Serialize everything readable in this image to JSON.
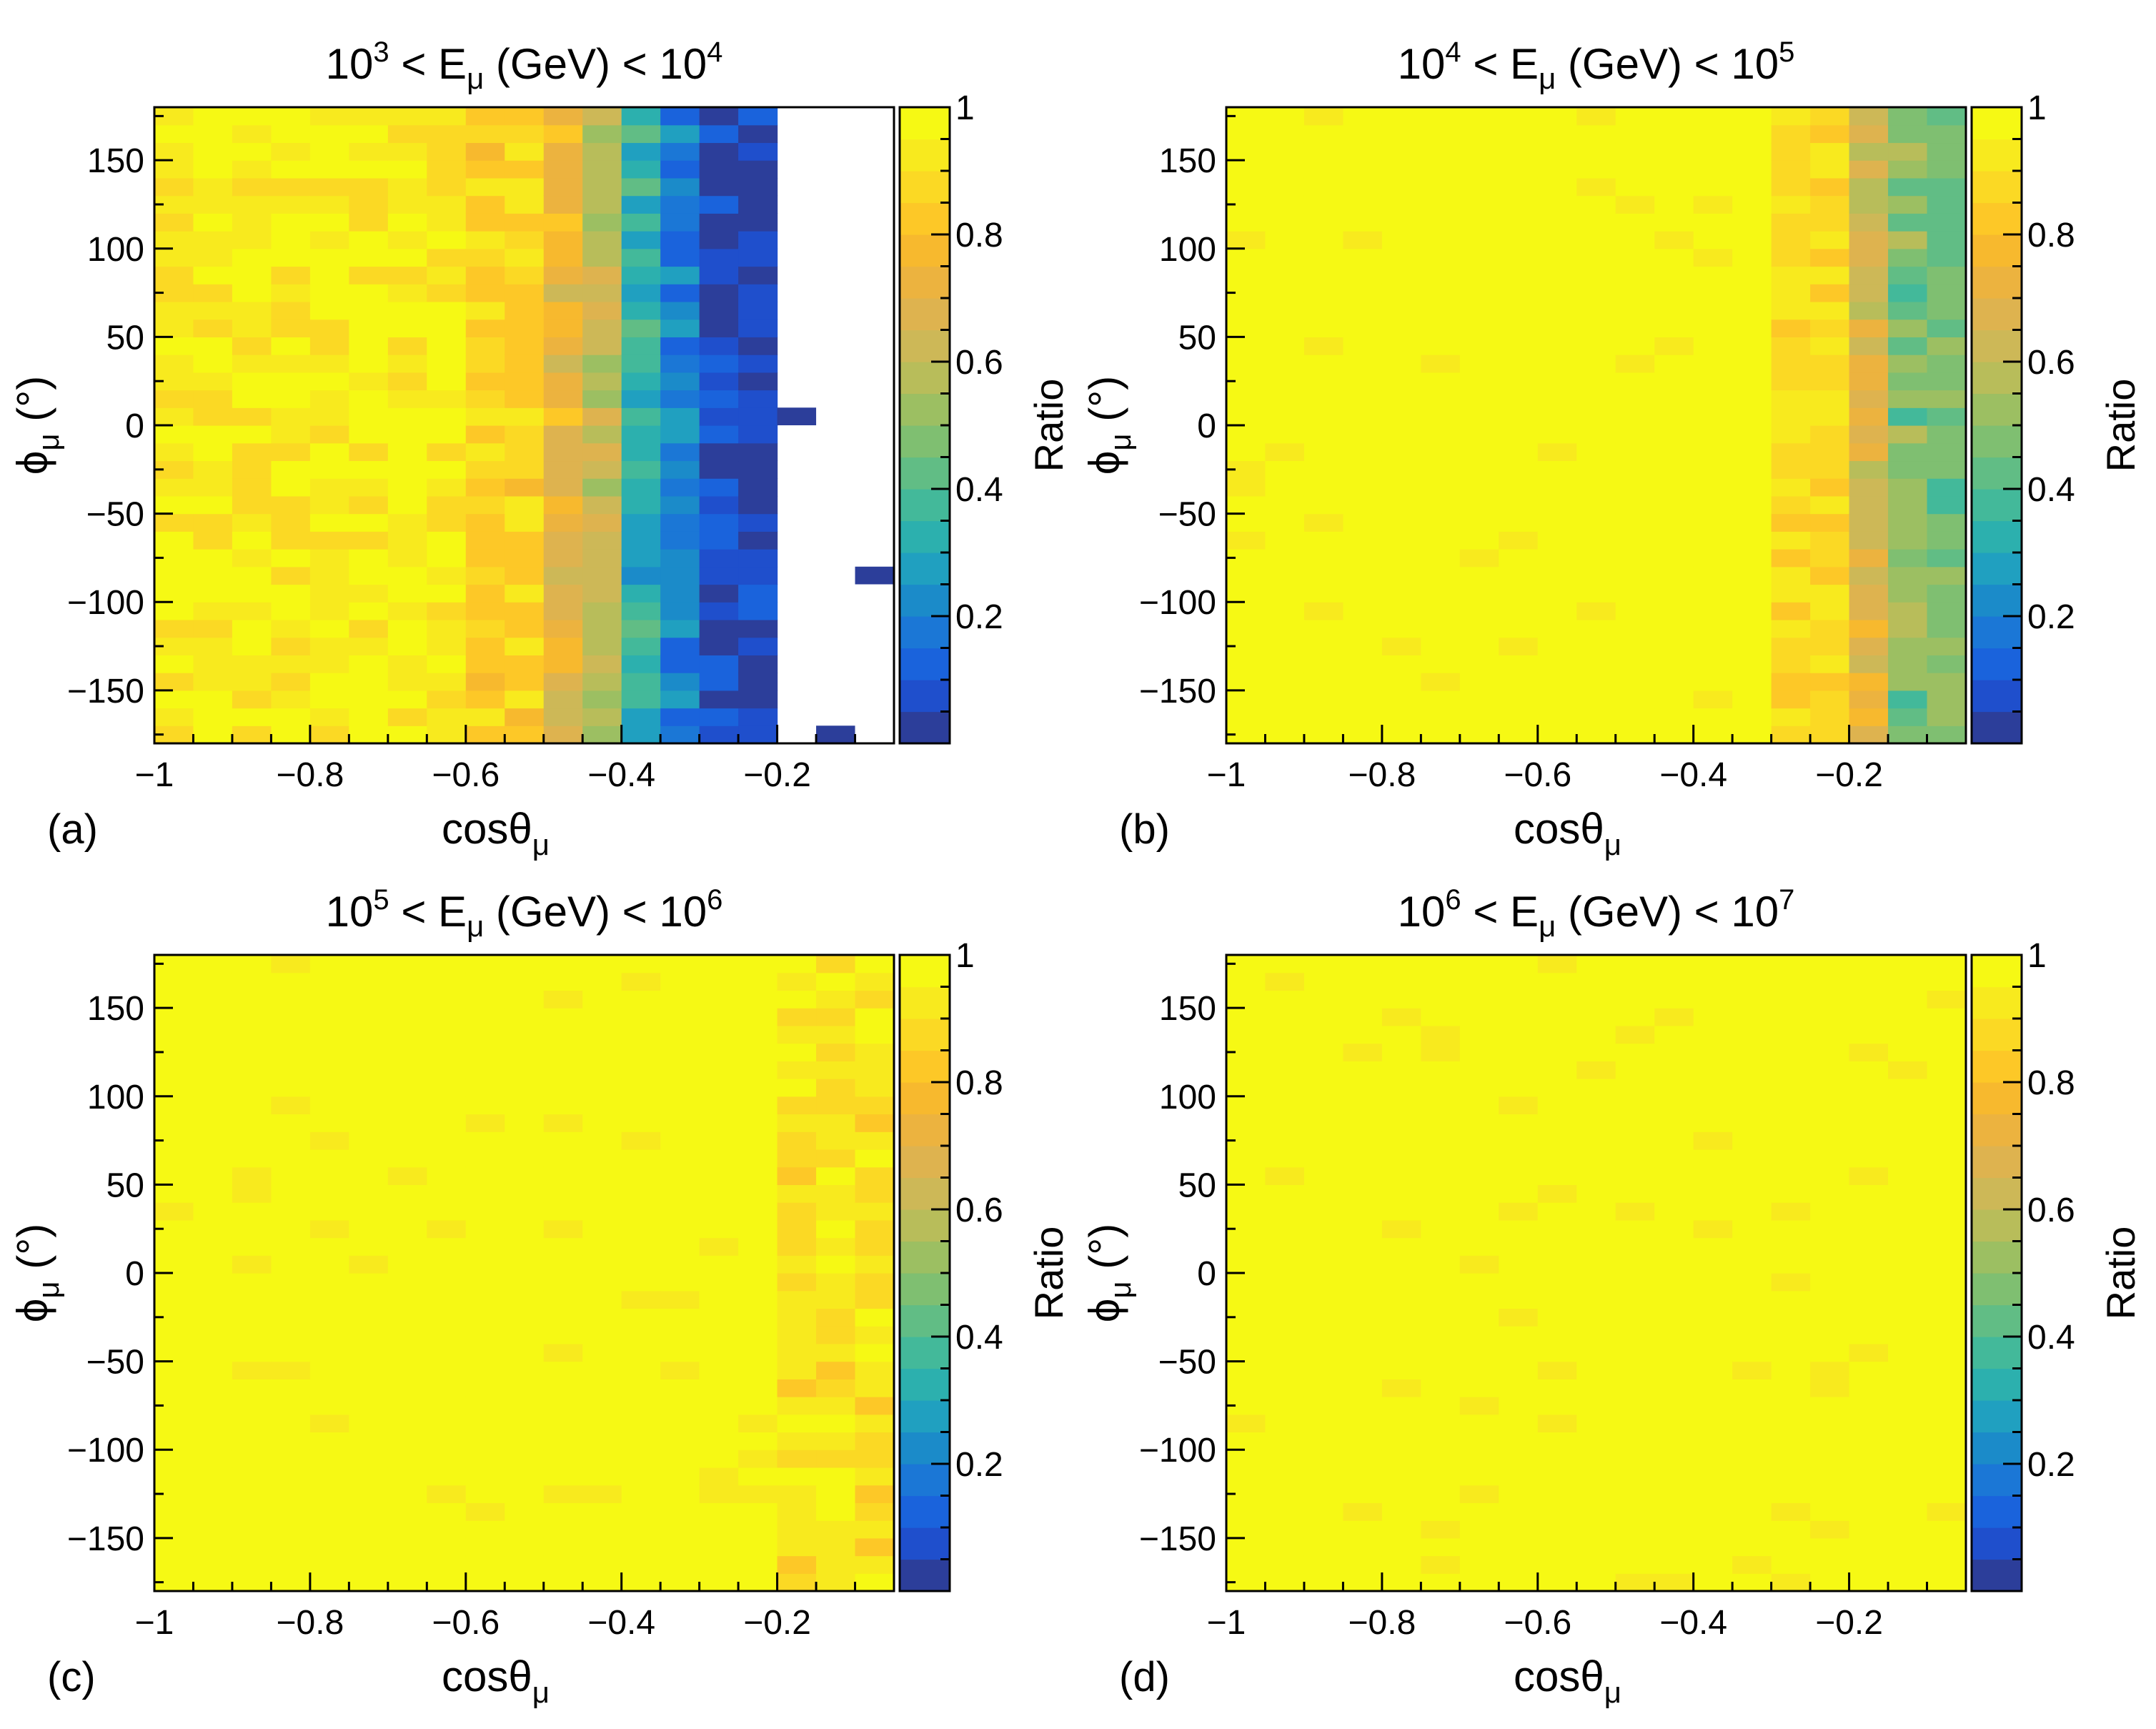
{
  "figure": {
    "colorbar_label": "Ratio"
  },
  "colorscale": [
    "#2c3e9a",
    "#1f4fcc",
    "#1a63dc",
    "#1b77d6",
    "#1b8bc9",
    "#20a0c0",
    "#2cb0ae",
    "#43b99a",
    "#61bd85",
    "#7fbf71",
    "#9cbf62",
    "#b8bd5a",
    "#cdb857",
    "#deb34f",
    "#ecb33f",
    "#f7b92e",
    "#fdc827",
    "#fbd924",
    "#f8ea1e",
    "#f6f914"
  ],
  "chart_data": [
    {
      "type": "heatmap",
      "panel_label": "(a)",
      "title": {
        "base1": "10",
        "exp1": "3",
        "mid": " < E",
        "sub": "μ",
        "after": " (GeV) < ",
        "base2": "10",
        "exp2": "4"
      },
      "xlabel": {
        "main": "cosθ",
        "sub": "μ"
      },
      "ylabel": {
        "main": "ϕ",
        "sub": "μ",
        "after": " (°)"
      },
      "colorbar": {
        "label": "Ratio",
        "ticks": [
          "1",
          "0.8",
          "0.6",
          "0.4",
          "0.2"
        ],
        "tick_values": [
          1,
          0.8,
          0.6,
          0.4,
          0.2
        ],
        "range": [
          0,
          1
        ]
      },
      "x_ticks": [
        "−1",
        "−0.8",
        "−0.6",
        "−0.4",
        "−0.2"
      ],
      "x_tick_values": [
        -1,
        -0.8,
        -0.6,
        -0.4,
        -0.2
      ],
      "y_ticks": [
        "150",
        "100",
        "50",
        "0",
        "−50",
        "−100",
        "−150"
      ],
      "y_tick_values": [
        150,
        100,
        50,
        0,
        -50,
        -100,
        -150
      ],
      "xlim": [
        -1,
        -0.05
      ],
      "ylim": [
        -180,
        180
      ],
      "n_xbins": 19,
      "n_ybins": 36,
      "columns": [
        {
          "from": -1.0,
          "to": -0.6,
          "mean": 0.94
        },
        {
          "from": -0.6,
          "to": -0.5,
          "mean": 0.86
        },
        {
          "from": -0.5,
          "to": -0.45,
          "mean": 0.72
        },
        {
          "from": -0.45,
          "to": -0.4,
          "mean": 0.6
        },
        {
          "from": -0.4,
          "to": -0.35,
          "mean": 0.33
        },
        {
          "from": -0.35,
          "to": -0.3,
          "mean": 0.2
        },
        {
          "from": -0.3,
          "to": -0.25,
          "mean": 0.06
        },
        {
          "from": -0.25,
          "to": -0.2,
          "mean": 0.03
        }
      ],
      "isolated_cells": [
        {
          "x": -0.2,
          "phi": 0,
          "value": 0.02
        },
        {
          "x": -0.1,
          "phi": -85,
          "value": 0.02
        },
        {
          "x": -0.15,
          "phi": -175,
          "value": 0.02
        }
      ]
    },
    {
      "type": "heatmap",
      "panel_label": "(b)",
      "title": {
        "base1": "10",
        "exp1": "4",
        "mid": " < E",
        "sub": "μ",
        "after": " (GeV) < ",
        "base2": "10",
        "exp2": "5"
      },
      "xlabel": {
        "main": "cosθ",
        "sub": "μ"
      },
      "ylabel": {
        "main": "ϕ",
        "sub": "μ",
        "after": " (°)"
      },
      "colorbar": {
        "label": "Ratio",
        "ticks": [
          "1",
          "0.8",
          "0.6",
          "0.4",
          "0.2"
        ],
        "tick_values": [
          1,
          0.8,
          0.6,
          0.4,
          0.2
        ],
        "range": [
          0,
          1
        ]
      },
      "x_ticks": [
        "−1",
        "−0.8",
        "−0.6",
        "−0.4",
        "−0.2"
      ],
      "x_tick_values": [
        -1,
        -0.8,
        -0.6,
        -0.4,
        -0.2
      ],
      "y_ticks": [
        "150",
        "100",
        "50",
        "0",
        "−50",
        "−100",
        "−150"
      ],
      "y_tick_values": [
        150,
        100,
        50,
        0,
        -50,
        -100,
        -150
      ],
      "xlim": [
        -1,
        -0.05
      ],
      "ylim": [
        -180,
        180
      ],
      "n_xbins": 19,
      "n_ybins": 36,
      "columns": [
        {
          "from": -1.0,
          "to": -0.3,
          "mean": 0.99
        },
        {
          "from": -0.3,
          "to": -0.2,
          "mean": 0.88
        },
        {
          "from": -0.2,
          "to": -0.15,
          "mean": 0.68
        },
        {
          "from": -0.15,
          "to": -0.05,
          "mean": 0.48
        }
      ],
      "isolated_cells": []
    },
    {
      "type": "heatmap",
      "panel_label": "(c)",
      "title": {
        "base1": "10",
        "exp1": "5",
        "mid": " < E",
        "sub": "μ",
        "after": " (GeV) < ",
        "base2": "10",
        "exp2": "6"
      },
      "xlabel": {
        "main": "cosθ",
        "sub": "μ"
      },
      "ylabel": {
        "main": "ϕ",
        "sub": "μ",
        "after": " (°)"
      },
      "colorbar": {
        "label": "Ratio",
        "ticks": [
          "1",
          "0.8",
          "0.6",
          "0.4",
          "0.2"
        ],
        "tick_values": [
          1,
          0.8,
          0.6,
          0.4,
          0.2
        ],
        "range": [
          0,
          1
        ]
      },
      "x_ticks": [
        "−1",
        "−0.8",
        "−0.6",
        "−0.4",
        "−0.2"
      ],
      "x_tick_values": [
        -1,
        -0.8,
        -0.6,
        -0.4,
        -0.2
      ],
      "y_ticks": [
        "150",
        "100",
        "50",
        "0",
        "−50",
        "−100",
        "−150"
      ],
      "y_tick_values": [
        150,
        100,
        50,
        0,
        -50,
        -100,
        -150
      ],
      "xlim": [
        -1,
        -0.05
      ],
      "ylim": [
        -180,
        180
      ],
      "n_xbins": 19,
      "n_ybins": 36,
      "columns": [
        {
          "from": -1.0,
          "to": -0.2,
          "mean": 0.99
        },
        {
          "from": -0.2,
          "to": -0.05,
          "mean": 0.91
        }
      ],
      "isolated_cells": []
    },
    {
      "type": "heatmap",
      "panel_label": "(d)",
      "title": {
        "base1": "10",
        "exp1": "6",
        "mid": " < E",
        "sub": "μ",
        "after": " (GeV) < ",
        "base2": "10",
        "exp2": "7"
      },
      "xlabel": {
        "main": "cosθ",
        "sub": "μ"
      },
      "ylabel": {
        "main": "ϕ",
        "sub": "μ",
        "after": " (°)"
      },
      "colorbar": {
        "label": "Ratio",
        "ticks": [
          "1",
          "0.8",
          "0.6",
          "0.4",
          "0.2"
        ],
        "tick_values": [
          1,
          0.8,
          0.6,
          0.4,
          0.2
        ],
        "range": [
          0,
          1
        ]
      },
      "x_ticks": [
        "−1",
        "−0.8",
        "−0.6",
        "−0.4",
        "−0.2"
      ],
      "x_tick_values": [
        -1,
        -0.8,
        -0.6,
        -0.4,
        -0.2
      ],
      "y_ticks": [
        "150",
        "100",
        "50",
        "0",
        "−50",
        "−100",
        "−150"
      ],
      "y_tick_values": [
        150,
        100,
        50,
        0,
        -50,
        -100,
        -150
      ],
      "xlim": [
        -1,
        -0.05
      ],
      "ylim": [
        -180,
        180
      ],
      "n_xbins": 19,
      "n_ybins": 36,
      "columns": [
        {
          "from": -1.0,
          "to": -0.05,
          "mean": 1.0
        }
      ],
      "isolated_cells": []
    }
  ]
}
